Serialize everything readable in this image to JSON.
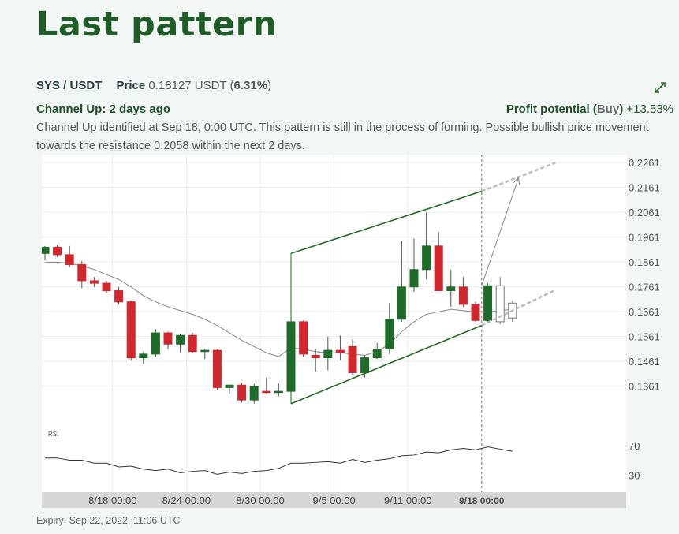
{
  "page": {
    "title": "Last pattern",
    "pair": "SYS / USDT",
    "price_label": "Price",
    "price_value": "0.18127 USDT",
    "price_change": "6.31%",
    "pattern_title": "Channel Up: 2 days ago",
    "profit_label": "Profit potential",
    "profit_direction": "Buy",
    "profit_value": "+13.53%",
    "description": "Channel Up identified at Sep 18, 0:00 UTC. This pattern is still in the process of forming. Possible bullish price movement towards the resistance 0.2058 within the next 2 days.",
    "expiry": "Expiry: Sep 22, 2022, 11:06 UTC"
  },
  "colors": {
    "bull": "#1e6b2a",
    "bear": "#d0262e",
    "channel": "#1f6b1f",
    "accent": "#1f5c28"
  },
  "icons": {
    "expand": "expand-arrows-icon"
  },
  "chart_data": {
    "type": "candlestick",
    "ylim": [
      0.1261,
      0.2261
    ],
    "y_ticks": [
      "0.2261",
      "0.2161",
      "0.2061",
      "0.1961",
      "0.1861",
      "0.1761",
      "0.1661",
      "0.1561",
      "0.1461",
      "0.1361"
    ],
    "x_ticks": [
      {
        "label": "8/18 00:00",
        "index": 5.5
      },
      {
        "label": "8/24 00:00",
        "index": 11.5
      },
      {
        "label": "8/30 00:00",
        "index": 17.5
      },
      {
        "label": "9/5 00:00",
        "index": 23.5
      },
      {
        "label": "9/11 00:00",
        "index": 29.5
      },
      {
        "label": "9/18 00:00",
        "index": 35.5,
        "bold": true
      }
    ],
    "candles": [
      {
        "o": 0.1895,
        "h": 0.1925,
        "l": 0.187,
        "c": 0.192
      },
      {
        "o": 0.192,
        "h": 0.193,
        "l": 0.188,
        "c": 0.189
      },
      {
        "o": 0.189,
        "h": 0.1925,
        "l": 0.184,
        "c": 0.185
      },
      {
        "o": 0.185,
        "h": 0.1865,
        "l": 0.1755,
        "c": 0.1785
      },
      {
        "o": 0.1785,
        "h": 0.18,
        "l": 0.176,
        "c": 0.1775
      },
      {
        "o": 0.1775,
        "h": 0.1785,
        "l": 0.1735,
        "c": 0.1745
      },
      {
        "o": 0.1745,
        "h": 0.176,
        "l": 0.169,
        "c": 0.17
      },
      {
        "o": 0.17,
        "h": 0.1705,
        "l": 0.1465,
        "c": 0.1475
      },
      {
        "o": 0.1475,
        "h": 0.15,
        "l": 0.145,
        "c": 0.149
      },
      {
        "o": 0.149,
        "h": 0.159,
        "l": 0.148,
        "c": 0.1575
      },
      {
        "o": 0.1575,
        "h": 0.158,
        "l": 0.151,
        "c": 0.153
      },
      {
        "o": 0.153,
        "h": 0.157,
        "l": 0.1495,
        "c": 0.1565
      },
      {
        "o": 0.1565,
        "h": 0.1575,
        "l": 0.1495,
        "c": 0.15
      },
      {
        "o": 0.15,
        "h": 0.151,
        "l": 0.147,
        "c": 0.1505
      },
      {
        "o": 0.1505,
        "h": 0.151,
        "l": 0.1345,
        "c": 0.1355
      },
      {
        "o": 0.1355,
        "h": 0.1365,
        "l": 0.133,
        "c": 0.1365
      },
      {
        "o": 0.1365,
        "h": 0.1375,
        "l": 0.1295,
        "c": 0.1305
      },
      {
        "o": 0.1305,
        "h": 0.137,
        "l": 0.129,
        "c": 0.136
      },
      {
        "o": 0.134,
        "h": 0.1395,
        "l": 0.133,
        "c": 0.1335
      },
      {
        "o": 0.1335,
        "h": 0.137,
        "l": 0.132,
        "c": 0.134
      },
      {
        "o": 0.134,
        "h": 0.1695,
        "l": 0.132,
        "c": 0.162
      },
      {
        "o": 0.162,
        "h": 0.1625,
        "l": 0.148,
        "c": 0.149
      },
      {
        "o": 0.1485,
        "h": 0.151,
        "l": 0.142,
        "c": 0.1475
      },
      {
        "o": 0.1475,
        "h": 0.156,
        "l": 0.1425,
        "c": 0.1505
      },
      {
        "o": 0.1505,
        "h": 0.1565,
        "l": 0.1465,
        "c": 0.1495
      },
      {
        "o": 0.152,
        "h": 0.155,
        "l": 0.1405,
        "c": 0.1415
      },
      {
        "o": 0.1415,
        "h": 0.1485,
        "l": 0.1395,
        "c": 0.1475
      },
      {
        "o": 0.1475,
        "h": 0.1535,
        "l": 0.147,
        "c": 0.151
      },
      {
        "o": 0.151,
        "h": 0.1695,
        "l": 0.149,
        "c": 0.163
      },
      {
        "o": 0.163,
        "h": 0.1945,
        "l": 0.162,
        "c": 0.176
      },
      {
        "o": 0.176,
        "h": 0.1955,
        "l": 0.174,
        "c": 0.183
      },
      {
        "o": 0.183,
        "h": 0.206,
        "l": 0.179,
        "c": 0.1925
      },
      {
        "o": 0.1925,
        "h": 0.198,
        "l": 0.1745,
        "c": 0.1745
      },
      {
        "o": 0.1745,
        "h": 0.183,
        "l": 0.168,
        "c": 0.176
      },
      {
        "o": 0.176,
        "h": 0.18,
        "l": 0.168,
        "c": 0.169
      },
      {
        "o": 0.169,
        "h": 0.17,
        "l": 0.162,
        "c": 0.1625
      },
      {
        "o": 0.1625,
        "h": 0.1775,
        "l": 0.1615,
        "c": 0.1765
      },
      {
        "o": 0.162,
        "h": 0.18,
        "l": 0.161,
        "c": 0.1765,
        "hollow": true
      },
      {
        "o": 0.1635,
        "h": 0.1705,
        "l": 0.162,
        "c": 0.1695,
        "hollow": true
      }
    ],
    "moving_average": [
      0.186,
      0.186,
      0.1855,
      0.1845,
      0.183,
      0.181,
      0.179,
      0.176,
      0.1725,
      0.17,
      0.168,
      0.1665,
      0.165,
      0.163,
      0.1605,
      0.1575,
      0.1545,
      0.152,
      0.1495,
      0.148,
      0.1515,
      0.151,
      0.15,
      0.1495,
      0.1495,
      0.149,
      0.1485,
      0.15,
      0.153,
      0.158,
      0.162,
      0.165,
      0.166,
      0.167,
      0.1665,
      0.166,
      0.166,
      0.1665,
      0.167
    ],
    "channel": {
      "upper": [
        [
          20,
          0.1895
        ],
        [
          35.5,
          0.2145
        ]
      ],
      "lower": [
        [
          20,
          0.129
        ],
        [
          35.5,
          0.1605
        ]
      ],
      "upper_projection": [
        [
          35.5,
          0.2145
        ],
        [
          41.5,
          0.226
        ]
      ],
      "lower_projection": [
        [
          35.5,
          0.1605
        ],
        [
          41.5,
          0.1748
        ]
      ],
      "connector": [
        [
          20,
          0.129
        ],
        [
          20,
          0.1895
        ]
      ],
      "target_arrow": [
        [
          35.5,
          0.1765
        ],
        [
          38.5,
          0.22
        ]
      ]
    },
    "current_line_index": 35.5,
    "rsi": {
      "label": "RSI",
      "levels": [
        70,
        30
      ],
      "ylim": [
        10,
        90
      ],
      "values": [
        53,
        53,
        50,
        50,
        46,
        46,
        41,
        42,
        38,
        36,
        38,
        33,
        35,
        36,
        31,
        34,
        32,
        35,
        36,
        39,
        46,
        46,
        47,
        48,
        46,
        51,
        47,
        50,
        52,
        56,
        57,
        61,
        60,
        64,
        66,
        64,
        68,
        65,
        62
      ]
    }
  }
}
